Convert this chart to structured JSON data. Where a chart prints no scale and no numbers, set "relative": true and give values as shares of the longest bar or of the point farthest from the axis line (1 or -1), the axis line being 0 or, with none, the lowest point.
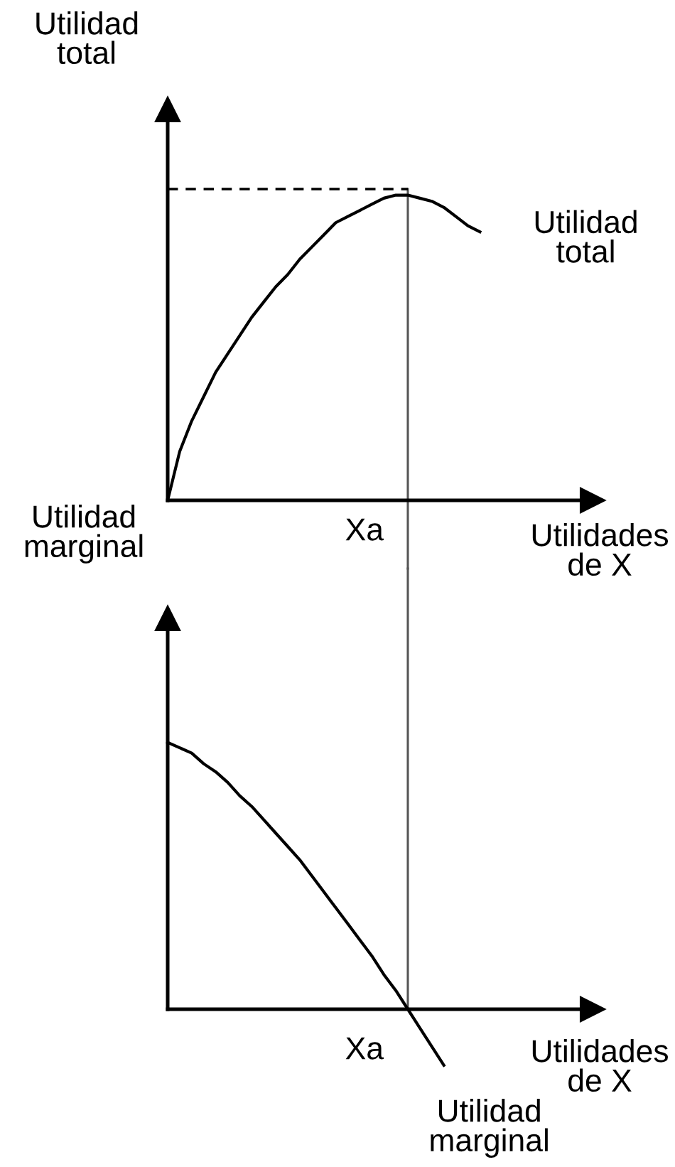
{
  "chart_data": [
    {
      "type": "line",
      "ylabel": "Utilidad\ntotal",
      "xlabel": "Utilidades\nde X",
      "relative": true,
      "categories": [
        null,
        null,
        null,
        null,
        null,
        null,
        null,
        null,
        null,
        null,
        null,
        null,
        null,
        null,
        null,
        null,
        null,
        null,
        null,
        null,
        null,
        null,
        null,
        null,
        null,
        null,
        null
      ],
      "series": [
        {
          "name": "Utilidad\ntotal",
          "color": "#000000",
          "values": [
            0,
            0.16,
            0.26,
            0.34,
            0.42,
            0.48,
            0.54,
            0.6,
            0.65,
            0.7,
            0.74,
            0.79,
            0.83,
            0.87,
            0.91,
            0.93,
            0.95,
            0.97,
            0.99,
            1,
            1,
            0.99,
            0.98,
            0.96,
            0.93,
            0.9,
            0.88
          ]
        }
      ],
      "ref_lines": [
        {
          "axis": "y",
          "value": 1.02,
          "line_style": "dashed",
          "color": "#000000"
        }
      ],
      "annotations": [
        "Xa"
      ]
    },
    {
      "type": "line",
      "ylabel": "Utilidad\nmarginal",
      "xlabel": "Utilidades\nde X",
      "relative": true,
      "categories": [
        null,
        null,
        null,
        null,
        null,
        null,
        null,
        null,
        null,
        null,
        null,
        null,
        null,
        null,
        null,
        null,
        null,
        null,
        null,
        null,
        null,
        null,
        null,
        null
      ],
      "series": [
        {
          "name": "Utilidad\nmarginal",
          "color": "#000000",
          "values": [
            1,
            0.98,
            0.96,
            0.92,
            0.89,
            0.85,
            0.8,
            0.76,
            0.71,
            0.66,
            0.61,
            0.56,
            0.5,
            0.44,
            0.38,
            0.32,
            0.26,
            0.2,
            0.13,
            0.07,
            0,
            -0.07,
            -0.14,
            -0.21
          ]
        }
      ],
      "annotations": [
        "Xa"
      ]
    }
  ]
}
